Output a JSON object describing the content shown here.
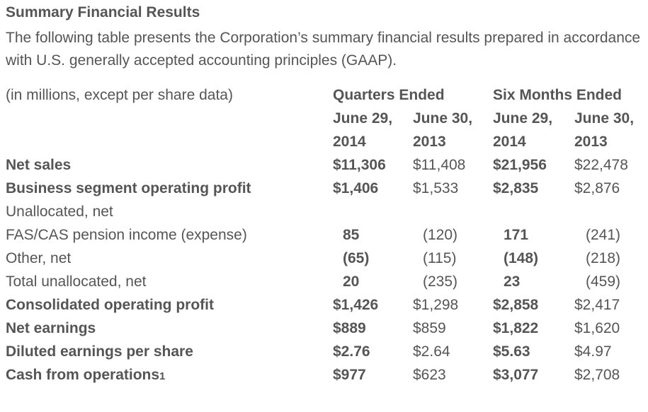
{
  "title": "Summary Financial Results",
  "intro": "The following table presents the Corporation’s summary financial results prepared in accordance with U.S. generally accepted accounting principles (GAAP).",
  "table": {
    "units_label": "(in millions, except per share data)",
    "group_headers": [
      "Quarters Ended",
      "Six Months Ended"
    ],
    "period_labels": [
      "June 29,",
      "June 30,",
      "June 29,",
      "June 30,"
    ],
    "period_years": [
      "2014",
      "2013",
      "2014",
      "2013"
    ],
    "rows": [
      {
        "label": "Net sales",
        "values": [
          "$11,306",
          "$11,408",
          "$21,956",
          "$22,478"
        ]
      },
      {
        "label": "Business segment operating profit",
        "values": [
          "$1,406",
          "$1,533",
          "$2,835",
          "$2,876"
        ]
      },
      {
        "label": "Unallocated, net",
        "values": [
          "",
          "",
          "",
          ""
        ]
      },
      {
        "label": "FAS/CAS pension income (expense)",
        "values": [
          "85",
          "(120)",
          "171",
          "(241)"
        ]
      },
      {
        "label": "Other, net",
        "values": [
          "(65)",
          "(115)",
          "(148)",
          "(218)"
        ]
      },
      {
        "label": "Total unallocated, net",
        "values": [
          "20",
          "(235)",
          "23",
          "(459)"
        ]
      },
      {
        "label": "Consolidated operating profit",
        "values": [
          "$1,426",
          "$1,298",
          "$2,858",
          "$2,417"
        ]
      },
      {
        "label": "Net earnings",
        "values": [
          "$889",
          "$859",
          "$1,822",
          "$1,620"
        ]
      },
      {
        "label": "Diluted earnings per share",
        "values": [
          "$2.76",
          "$2.64",
          "$5.63",
          "$4.97"
        ]
      },
      {
        "label": "Cash from operations",
        "footnote": "1",
        "values": [
          "$977",
          "$623",
          "$3,077",
          "$2,708"
        ]
      }
    ]
  }
}
